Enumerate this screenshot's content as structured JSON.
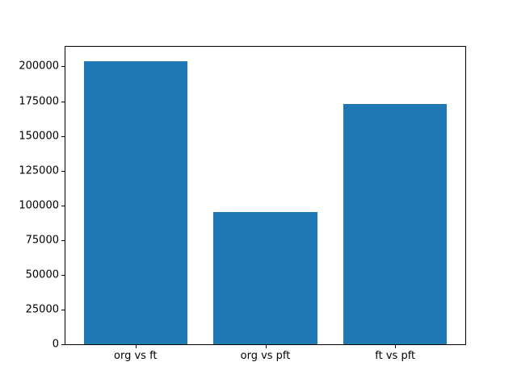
{
  "chart_data": {
    "type": "bar",
    "categories": [
      "org vs ft",
      "org vs pft",
      "ft vs pft"
    ],
    "values": [
      204000,
      95000,
      173000
    ],
    "title": "",
    "xlabel": "",
    "ylabel": "",
    "ylim": [
      0,
      214200
    ],
    "yticks": [
      0,
      25000,
      50000,
      75000,
      100000,
      125000,
      150000,
      175000,
      200000
    ],
    "bar_color": "#1f77b4",
    "grid": false,
    "legend": null,
    "spine_color": "#000000",
    "tick_label_color": "#000000",
    "background_color": "#ffffff"
  }
}
